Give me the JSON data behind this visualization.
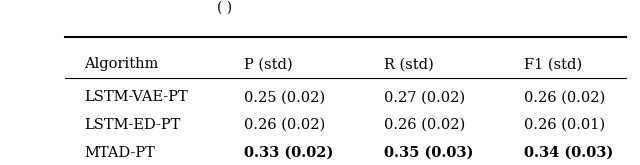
{
  "caption": "( )",
  "columns": [
    "Algorithm",
    "P (std)",
    "R (std)",
    "F1 (std)"
  ],
  "rows": [
    [
      "LSTM-VAE-PT",
      "0.25 (0.02)",
      "0.27 (0.02)",
      "0.26 (0.02)"
    ],
    [
      "LSTM-ED-PT",
      "0.26 (0.02)",
      "0.26 (0.02)",
      "0.26 (0.01)"
    ],
    [
      "MTAD-PT",
      "0.33 (0.02)",
      "0.35 (0.03)",
      "0.34 (0.03)"
    ]
  ],
  "bold_row": 2,
  "fig_width": 6.4,
  "fig_height": 1.65,
  "dpi": 100,
  "background_color": "#ffffff"
}
